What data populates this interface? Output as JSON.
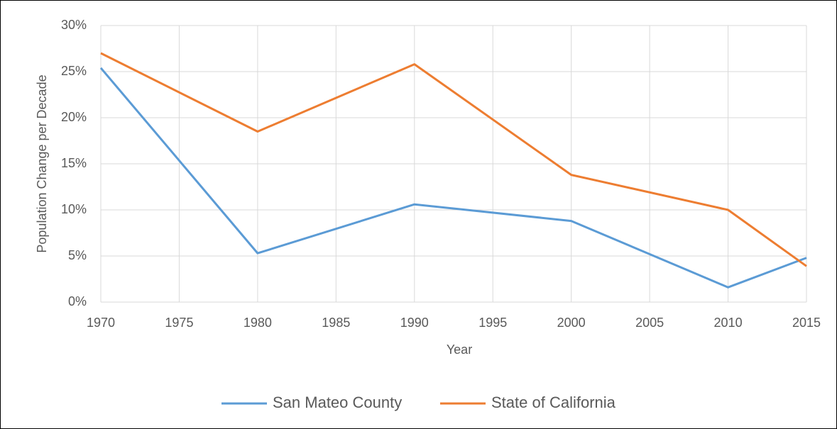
{
  "chart_data": {
    "type": "line",
    "x_label": "Year",
    "y_label": "Population Change per Decade",
    "x": [
      1970,
      1980,
      1990,
      2000,
      2010,
      2015
    ],
    "series": [
      {
        "name": "San Mateo County",
        "color": "#5b9bd5",
        "values": [
          25.4,
          5.3,
          10.6,
          8.8,
          1.6,
          4.8
        ]
      },
      {
        "name": "State of California",
        "color": "#ed7d31",
        "values": [
          27.0,
          18.5,
          25.8,
          13.8,
          10.0,
          3.9
        ]
      }
    ],
    "xlim": [
      1970,
      2015
    ],
    "xticks": [
      1970,
      1975,
      1980,
      1985,
      1990,
      1995,
      2000,
      2005,
      2010,
      2015
    ],
    "ylim": [
      0,
      30
    ],
    "yticks": [
      {
        "value": 0,
        "label": "0%"
      },
      {
        "value": 5,
        "label": "5%"
      },
      {
        "value": 10,
        "label": "10%"
      },
      {
        "value": 15,
        "label": "15%"
      },
      {
        "value": 20,
        "label": "20%"
      },
      {
        "value": 25,
        "label": "25%"
      },
      {
        "value": 30,
        "label": "30%"
      }
    ],
    "grid": true,
    "legend": "bottom"
  }
}
